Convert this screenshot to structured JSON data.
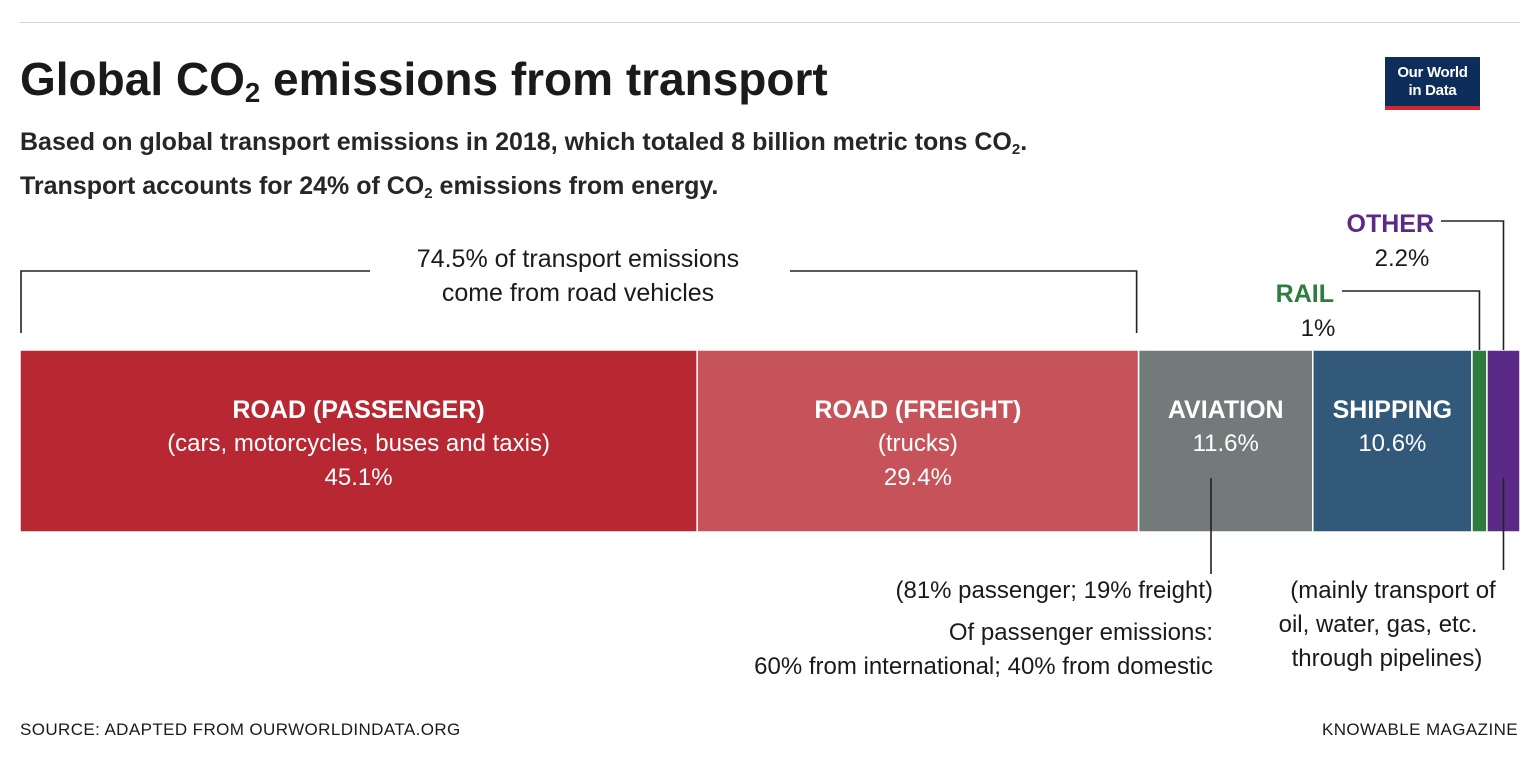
{
  "header": {
    "title_pre": "Global CO",
    "title_sub": "2",
    "title_post": " emissions from transport",
    "subtitle_line1_pre": "Based on global transport emissions in 2018, which totaled 8 billion metric tons CO",
    "subtitle_line1_sub": "2",
    "subtitle_line1_post": ".",
    "subtitle_line2_pre": "Transport accounts for 24% of CO",
    "subtitle_line2_sub": "2",
    "subtitle_line2_post": " emissions from energy."
  },
  "logo": {
    "line1": "Our World",
    "line2": "in Data"
  },
  "footer": {
    "source": "SOURCE: ADAPTED FROM OURWORLDINDATA.ORG",
    "credit": "KNOWABLE MAGAZINE"
  },
  "chart_data": {
    "type": "bar",
    "orientation": "horizontal-stacked",
    "unit": "% of global transport CO2 emissions",
    "total": 100,
    "segments": [
      {
        "name": "ROAD (PASSENGER)",
        "detail": "(cars, motorcycles, buses and taxis)",
        "value": 45.1,
        "value_label": "45.1%",
        "color": "#b72833"
      },
      {
        "name": "ROAD (FREIGHT)",
        "detail": "(trucks)",
        "value": 29.4,
        "value_label": "29.4%",
        "color": "#c6535a"
      },
      {
        "name": "AVIATION",
        "detail": "",
        "value": 11.6,
        "value_label": "11.6%",
        "color": "#737a7a"
      },
      {
        "name": "SHIPPING",
        "detail": "",
        "value": 10.6,
        "value_label": "10.6%",
        "color": "#32587a"
      },
      {
        "name": "RAIL",
        "detail": "",
        "value": 1,
        "value_label": "1%",
        "color": "#2e7d3e"
      },
      {
        "name": "OTHER",
        "detail": "",
        "value": 2.2,
        "value_label": "2.2%",
        "color": "#5b2a86"
      }
    ],
    "annotations": {
      "road_total": {
        "lines": [
          "74.5% of transport emissions",
          "come from road vehicles"
        ]
      },
      "aviation_note": {
        "lines": [
          "(81% passenger; 19% freight)",
          "Of passenger emissions:",
          "60% from international; 40% from domestic"
        ]
      },
      "other_note": {
        "lines": [
          "(mainly transport of",
          "oil, water, gas, etc.",
          "through pipelines)"
        ]
      }
    },
    "label_colors": {
      "rail": "#2e7d3e",
      "other": "#5b2a86"
    }
  }
}
